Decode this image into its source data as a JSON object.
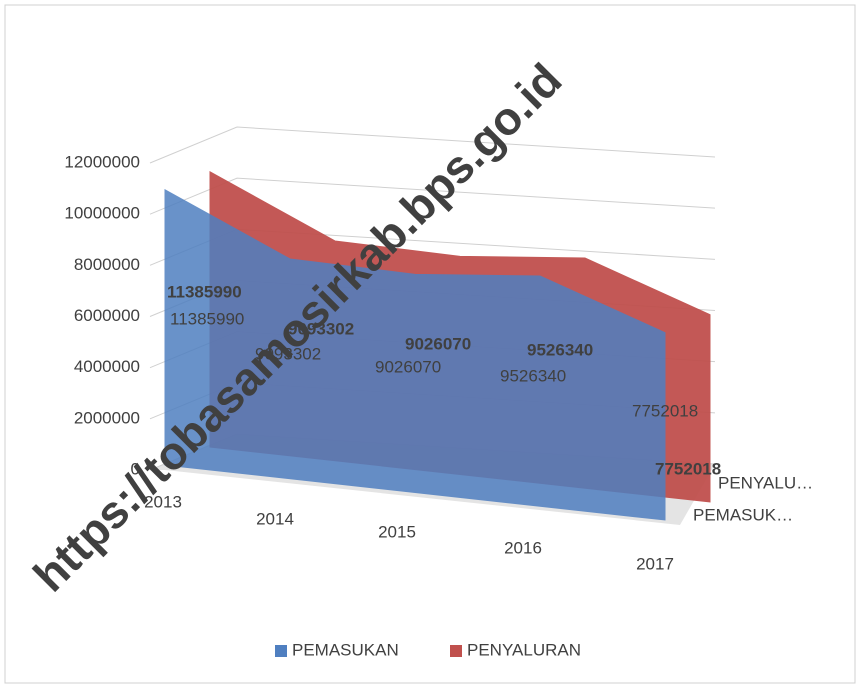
{
  "chart_data": {
    "type": "area",
    "categories": [
      "2013",
      "2014",
      "2015",
      "2016",
      "2017"
    ],
    "series": [
      {
        "name": "PEMASUKAN",
        "color": "#4f7fc0",
        "values": [
          11385990,
          9093302,
          9026070,
          9526340,
          7752018
        ]
      },
      {
        "name": "PENYALURAN",
        "color": "#c0504d",
        "values": [
          11385990,
          9093302,
          9026070,
          9526340,
          7752018
        ]
      }
    ],
    "depth_labels": [
      "PEMASUK…",
      "PENYALU…"
    ],
    "ylim": [
      0,
      12000000
    ],
    "yticks": [
      0,
      2000000,
      4000000,
      6000000,
      8000000,
      10000000,
      12000000
    ],
    "grid": true,
    "legend": "bottom",
    "watermark": "https://tobasamosirkab.bps.go.id"
  }
}
